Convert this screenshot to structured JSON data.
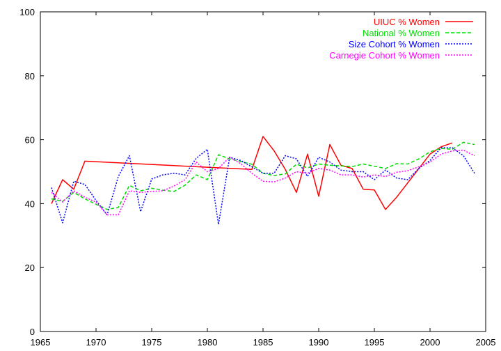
{
  "chart_data": {
    "type": "line",
    "title": "",
    "xlabel": "",
    "ylabel": "",
    "xlim": [
      1965,
      2005
    ],
    "ylim": [
      0,
      100
    ],
    "grid": false,
    "legend_position": "top-right",
    "x_ticks": [
      "1965",
      "1970",
      "1975",
      "1980",
      "1985",
      "1990",
      "1995",
      "2000",
      "2005"
    ],
    "y_ticks": [
      "0",
      "20",
      "40",
      "60",
      "80",
      "100"
    ],
    "series": [
      {
        "name": "UIUC % Women",
        "color": "#ff0000",
        "style": "solid",
        "points": [
          [
            1966,
            40
          ],
          [
            1967,
            47.5
          ],
          [
            1968,
            44.5
          ],
          [
            1969,
            53.3
          ],
          [
            1984,
            50.7
          ],
          [
            1985,
            61
          ],
          [
            1986,
            56.5
          ],
          [
            1987,
            50.7
          ],
          [
            1988,
            43.5
          ],
          [
            1989,
            55.5
          ],
          [
            1990,
            42.3
          ],
          [
            1991,
            58.5
          ],
          [
            1992,
            52
          ],
          [
            1993,
            51
          ],
          [
            1994,
            44.5
          ],
          [
            1995,
            44.3
          ],
          [
            1996,
            38.2
          ],
          [
            1997,
            42
          ],
          [
            1998,
            46.5
          ],
          [
            1999,
            51
          ],
          [
            2000,
            55.5
          ],
          [
            2001,
            57.8
          ],
          [
            2002,
            59
          ]
        ]
      },
      {
        "name": "National % Women",
        "color": "#00dd00",
        "style": "dashed",
        "points": [
          [
            1966,
            41.5
          ],
          [
            1967,
            40.7
          ],
          [
            1968,
            43.5
          ],
          [
            1969,
            41.5
          ],
          [
            1970,
            39.8
          ],
          [
            1971,
            38.2
          ],
          [
            1972,
            38.8
          ],
          [
            1973,
            45.7
          ],
          [
            1974,
            44
          ],
          [
            1975,
            44.8
          ],
          [
            1976,
            44.2
          ],
          [
            1977,
            43.8
          ],
          [
            1978,
            45.8
          ],
          [
            1979,
            49
          ],
          [
            1980,
            47.5
          ],
          [
            1981,
            55.3
          ],
          [
            1982,
            54
          ],
          [
            1983,
            53.2
          ],
          [
            1984,
            52.3
          ],
          [
            1985,
            49.5
          ],
          [
            1986,
            48.8
          ],
          [
            1987,
            49.3
          ],
          [
            1988,
            52.3
          ],
          [
            1989,
            51.2
          ],
          [
            1990,
            52.4
          ],
          [
            1991,
            52
          ],
          [
            1992,
            51.8
          ],
          [
            1993,
            51.6
          ],
          [
            1994,
            52.4
          ],
          [
            1995,
            51.7
          ],
          [
            1996,
            51
          ],
          [
            1997,
            52.5
          ],
          [
            1998,
            52.4
          ],
          [
            1999,
            54
          ],
          [
            2000,
            56.2
          ],
          [
            2001,
            57.3
          ],
          [
            2002,
            57
          ],
          [
            2003,
            59.2
          ],
          [
            2004,
            58.5
          ]
        ]
      },
      {
        "name": "Size Cohort % Women",
        "color": "#0000ff",
        "style": "dotted",
        "points": [
          [
            1966,
            45
          ],
          [
            1967,
            34
          ],
          [
            1968,
            47
          ],
          [
            1969,
            46
          ],
          [
            1970,
            41
          ],
          [
            1971,
            36.5
          ],
          [
            1972,
            48.5
          ],
          [
            1973,
            55
          ],
          [
            1974,
            37.5
          ],
          [
            1975,
            47.7
          ],
          [
            1976,
            49
          ],
          [
            1977,
            49.5
          ],
          [
            1978,
            49
          ],
          [
            1979,
            54.2
          ],
          [
            1980,
            57
          ],
          [
            1981,
            33.5
          ],
          [
            1982,
            54.5
          ],
          [
            1983,
            53.5
          ],
          [
            1984,
            51.5
          ],
          [
            1985,
            49.5
          ],
          [
            1986,
            49.5
          ],
          [
            1987,
            55
          ],
          [
            1988,
            54
          ],
          [
            1989,
            48.5
          ],
          [
            1990,
            54.5
          ],
          [
            1991,
            53
          ],
          [
            1992,
            50.5
          ],
          [
            1993,
            50
          ],
          [
            1994,
            50
          ],
          [
            1995,
            47.5
          ],
          [
            1996,
            50.5
          ],
          [
            1997,
            48
          ],
          [
            1998,
            47.5
          ],
          [
            1999,
            51
          ],
          [
            2000,
            53.5
          ],
          [
            2001,
            57.5
          ],
          [
            2002,
            57.5
          ],
          [
            2003,
            55
          ],
          [
            2004,
            49.5
          ]
        ]
      },
      {
        "name": "Carnegie Cohort % Women",
        "color": "#ff00ff",
        "style": "dotted",
        "points": [
          [
            1966,
            43.5
          ],
          [
            1967,
            40.5
          ],
          [
            1968,
            44
          ],
          [
            1969,
            42
          ],
          [
            1970,
            40.5
          ],
          [
            1971,
            36.5
          ],
          [
            1972,
            36.5
          ],
          [
            1973,
            44
          ],
          [
            1974,
            43.5
          ],
          [
            1975,
            43.8
          ],
          [
            1976,
            44
          ],
          [
            1977,
            45.5
          ],
          [
            1978,
            47.5
          ],
          [
            1979,
            53
          ],
          [
            1980,
            50
          ],
          [
            1981,
            51
          ],
          [
            1982,
            54.5
          ],
          [
            1983,
            52.5
          ],
          [
            1984,
            49.5
          ],
          [
            1985,
            47
          ],
          [
            1986,
            46.8
          ],
          [
            1987,
            48
          ],
          [
            1988,
            50
          ],
          [
            1989,
            49.5
          ],
          [
            1990,
            51
          ],
          [
            1991,
            50.5
          ],
          [
            1992,
            49
          ],
          [
            1993,
            49
          ],
          [
            1994,
            48.3
          ],
          [
            1995,
            49
          ],
          [
            1996,
            48.5
          ],
          [
            1997,
            49.8
          ],
          [
            1998,
            50.3
          ],
          [
            1999,
            51.5
          ],
          [
            2000,
            53
          ],
          [
            2001,
            55.5
          ],
          [
            2002,
            56.5
          ],
          [
            2003,
            56.7
          ],
          [
            2004,
            55
          ]
        ]
      }
    ]
  }
}
